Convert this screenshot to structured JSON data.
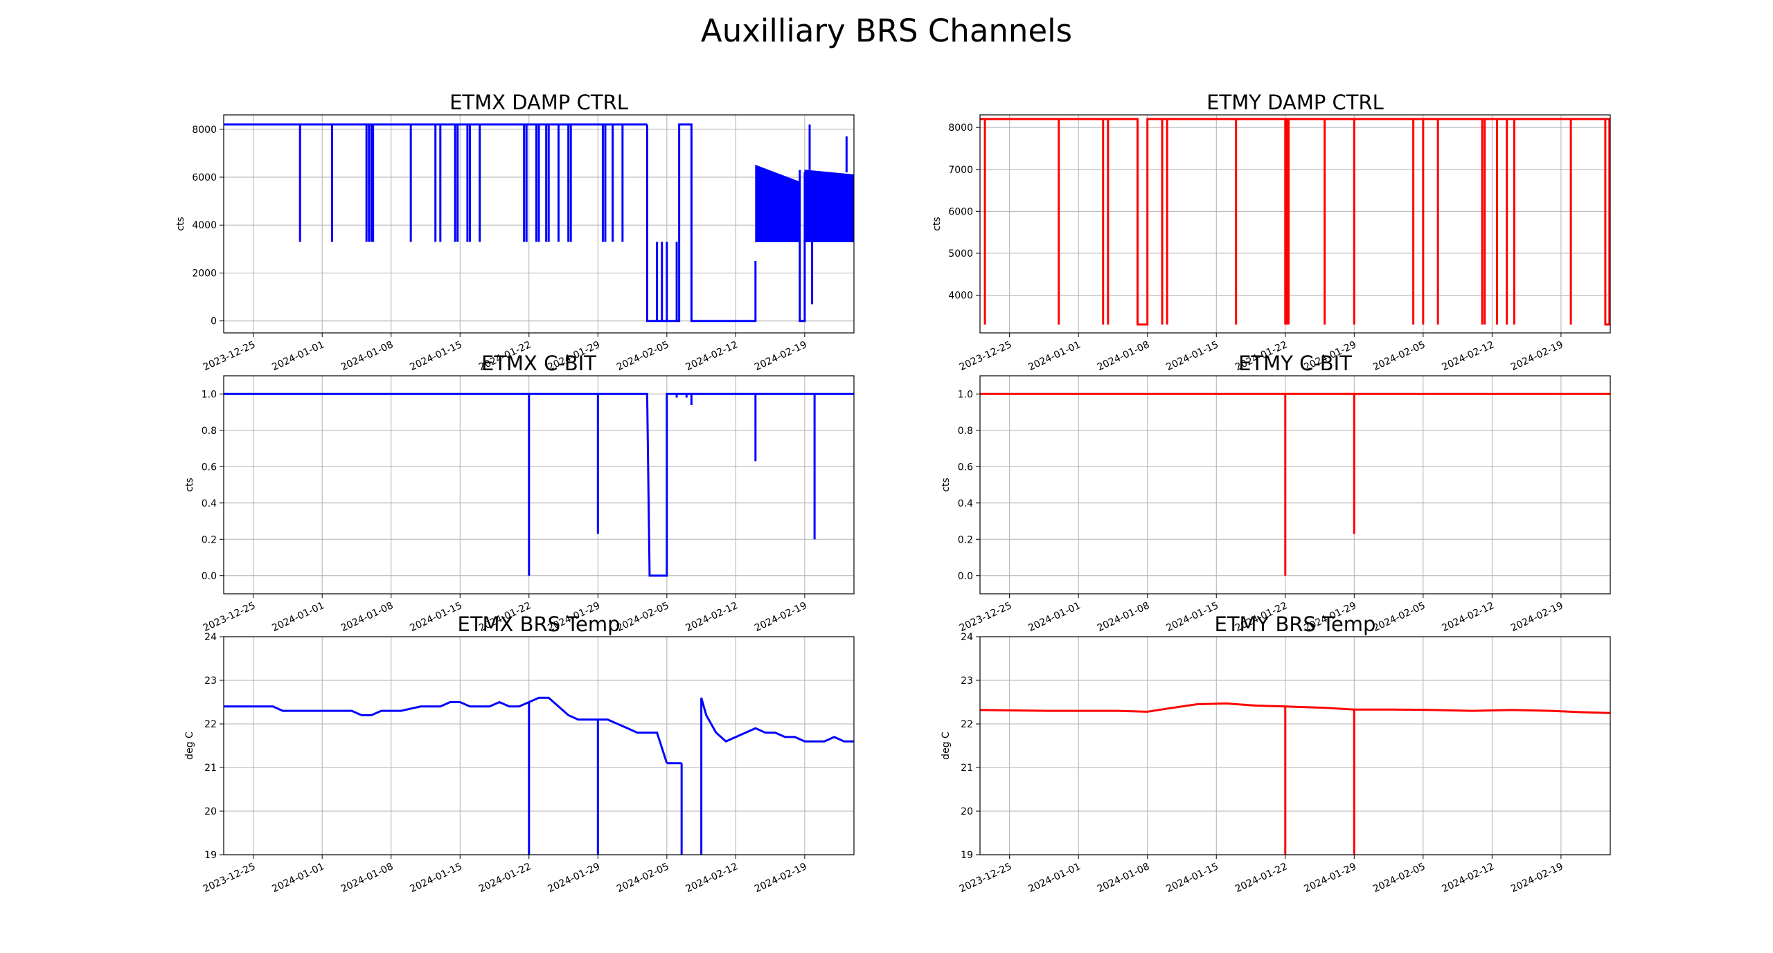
{
  "figure": {
    "suptitle": "Auxilliary BRS Channels"
  },
  "chart_data": [
    {
      "id": "etmx-damp",
      "type": "line",
      "title": "ETMX DAMP CTRL",
      "ylabel": "cts",
      "color": "#0000ff",
      "xlim": [
        "2023-12-22",
        "2024-02-24"
      ],
      "ylim": [
        -500,
        8600
      ],
      "yticks": [
        0,
        2000,
        4000,
        6000,
        8000
      ],
      "ytick_labels": [
        "0",
        "2000",
        "4000",
        "6000",
        "8000"
      ],
      "xticks": [
        "2023-12-25",
        "2024-01-01",
        "2024-01-08",
        "2024-01-15",
        "2024-01-22",
        "2024-01-29",
        "2024-02-05",
        "2024-02-12",
        "2024-02-19"
      ],
      "grid": true,
      "segments": [
        {
          "x": [
            "2023-12-22",
            "2024-02-03T00:00"
          ],
          "y": [
            8200,
            8200
          ]
        },
        {
          "x": [
            "2024-02-03T00:00",
            "2024-02-03T00:00",
            "2024-02-06T06:00",
            "2024-02-06T06:00",
            "2024-02-07T12:00",
            "2024-02-07T12:00",
            "2024-02-07T20:00",
            "2024-02-07T20:00",
            "2024-02-14T00:00",
            "2024-02-14T00:00"
          ],
          "y": [
            8200,
            0,
            0,
            8200,
            8200,
            0,
            0,
            0,
            0,
            2500
          ]
        },
        {
          "x": [
            "2024-02-18T12:00",
            "2024-02-18T12:00",
            "2024-02-19T00:00",
            "2024-02-19T00:00"
          ],
          "y": [
            6300,
            0,
            0,
            6200
          ]
        }
      ],
      "spikes": [
        {
          "x": [
            "2023-12-29T18:00"
          ],
          "y_from": 8200,
          "y_to": 3300
        },
        {
          "x": [
            "2024-01-02T00:00"
          ],
          "y_from": 8200,
          "y_to": 3300
        },
        {
          "x": [
            "2024-01-05T12:00",
            "2024-01-05T18:00",
            "2024-01-06T00:00",
            "2024-01-06T04:00"
          ],
          "y_from": 8200,
          "y_to": 3300
        },
        {
          "x": [
            "2024-01-10T00:00"
          ],
          "y_from": 8200,
          "y_to": 3300
        },
        {
          "x": [
            "2024-01-12T12:00",
            "2024-01-13T00:00",
            "2024-01-14T12:00",
            "2024-01-14T18:00",
            "2024-01-15T18:00",
            "2024-01-16T00:00",
            "2024-01-17T00:00"
          ],
          "y_from": 8200,
          "y_to": 3300
        },
        {
          "x": [
            "2024-01-21T12:00",
            "2024-01-21T18:00",
            "2024-01-22T18:00",
            "2024-01-23T00:00",
            "2024-01-23T18:00",
            "2024-01-24T00:00",
            "2024-01-25T00:00",
            "2024-01-26T00:00",
            "2024-01-26T06:00"
          ],
          "y_from": 8200,
          "y_to": 3300
        },
        {
          "x": [
            "2024-01-29T12:00",
            "2024-01-29T18:00",
            "2024-01-30T12:00",
            "2024-01-31T12:00"
          ],
          "y_from": 8200,
          "y_to": 3300
        },
        {
          "x": [
            "2024-02-04T00:00",
            "2024-02-04T12:00",
            "2024-02-05T00:00",
            "2024-02-06T00:00"
          ],
          "y_from": 0,
          "y_to": 3300
        },
        {
          "x": [
            "2024-02-19T18:00"
          ],
          "y_from": 6200,
          "y_to": 700
        },
        {
          "x": [
            "2024-02-19T12:00"
          ],
          "y_from": 6300,
          "y_to": 8200
        },
        {
          "x": [
            "2024-02-23T06:00"
          ],
          "y_from": 6200,
          "y_to": 7700
        }
      ],
      "bands": [
        {
          "x": [
            "2024-02-14T00:00",
            "2024-02-18T12:00"
          ],
          "y_low": 3300,
          "y_high_start": 6500,
          "y_high_end": 5800
        },
        {
          "x": [
            "2024-02-19T00:00",
            "2024-02-24"
          ],
          "y_low": 3300,
          "y_high_start": 6300,
          "y_high_end": 6100
        }
      ]
    },
    {
      "id": "etmy-damp",
      "type": "line",
      "title": "ETMY DAMP CTRL",
      "ylabel": "cts",
      "color": "#ff0000",
      "xlim": [
        "2023-12-22",
        "2024-02-24"
      ],
      "ylim": [
        3100,
        8300
      ],
      "yticks": [
        4000,
        5000,
        6000,
        7000,
        8000
      ],
      "ytick_labels": [
        "4000",
        "5000",
        "6000",
        "7000",
        "8000"
      ],
      "xticks": [
        "2023-12-25",
        "2024-01-01",
        "2024-01-08",
        "2024-01-15",
        "2024-01-22",
        "2024-01-29",
        "2024-02-05",
        "2024-02-12",
        "2024-02-19"
      ],
      "grid": true,
      "segments": [
        {
          "x": [
            "2023-12-22",
            "2024-01-07T00:00",
            "2024-01-07T00:00",
            "2024-01-08T00:00",
            "2024-01-08T00:00",
            "2024-02-24"
          ],
          "y": [
            8200,
            8200,
            3300,
            3300,
            8200,
            8200
          ]
        },
        {
          "x": [
            "2024-02-23T12:00",
            "2024-02-23T12:00",
            "2024-02-23T22:00",
            "2024-02-23T22:00"
          ],
          "y": [
            8200,
            3300,
            3300,
            8200
          ]
        }
      ],
      "spikes": [
        {
          "x": [
            "2023-12-22T12:00",
            "2023-12-30T00:00",
            "2024-01-03T12:00",
            "2024-01-04T00:00",
            "2024-01-09T12:00",
            "2024-01-10T00:00",
            "2024-01-17T00:00",
            "2024-01-22T00:00",
            "2024-01-22T04:00",
            "2024-01-22T08:00",
            "2024-01-26T00:00",
            "2024-01-29T00:00",
            "2024-02-04T00:00",
            "2024-02-05T00:00",
            "2024-02-06T12:00",
            "2024-02-11T00:00",
            "2024-02-11T06:00",
            "2024-02-12T12:00",
            "2024-02-13T12:00",
            "2024-02-14T06:00",
            "2024-02-20T00:00"
          ],
          "y_from": 8200,
          "y_to": 3300
        }
      ],
      "bands": []
    },
    {
      "id": "etmx-cbit",
      "type": "line",
      "title": "ETMX C-BIT",
      "ylabel": "cts",
      "color": "#0000ff",
      "xlim": [
        "2023-12-22",
        "2024-02-24"
      ],
      "ylim": [
        -0.1,
        1.1
      ],
      "yticks": [
        0.0,
        0.2,
        0.4,
        0.6,
        0.8,
        1.0
      ],
      "ytick_labels": [
        "0.0",
        "0.2",
        "0.4",
        "0.6",
        "0.8",
        "1.0"
      ],
      "xticks": [
        "2023-12-25",
        "2024-01-01",
        "2024-01-08",
        "2024-01-15",
        "2024-01-22",
        "2024-01-29",
        "2024-02-05",
        "2024-02-12",
        "2024-02-19"
      ],
      "grid": true,
      "segments": [
        {
          "x": [
            "2023-12-22",
            "2024-02-03T00:00",
            "2024-02-03T06:00",
            "2024-02-05T00:00",
            "2024-02-05T00:00",
            "2024-02-24"
          ],
          "y": [
            1,
            1,
            0,
            0,
            1,
            1
          ]
        }
      ],
      "spikes": [
        {
          "x": [
            "2024-01-22T00:00"
          ],
          "y_from": 1,
          "y_to": 0
        },
        {
          "x": [
            "2024-01-29T00:00"
          ],
          "y_from": 1,
          "y_to": 0.23
        },
        {
          "x": [
            "2024-02-06T00:00",
            "2024-02-07T00:00"
          ],
          "y_from": 1,
          "y_to": 0.98
        },
        {
          "x": [
            "2024-02-07T12:00"
          ],
          "y_from": 1,
          "y_to": 0.94
        },
        {
          "x": [
            "2024-02-14T00:00"
          ],
          "y_from": 1,
          "y_to": 0.63
        },
        {
          "x": [
            "2024-02-20T00:00"
          ],
          "y_from": 1,
          "y_to": 0.2
        }
      ],
      "bands": []
    },
    {
      "id": "etmy-cbit",
      "type": "line",
      "title": "ETMY C-BIT",
      "ylabel": "cts",
      "color": "#ff0000",
      "xlim": [
        "2023-12-22",
        "2024-02-24"
      ],
      "ylim": [
        -0.1,
        1.1
      ],
      "yticks": [
        0.0,
        0.2,
        0.4,
        0.6,
        0.8,
        1.0
      ],
      "ytick_labels": [
        "0.0",
        "0.2",
        "0.4",
        "0.6",
        "0.8",
        "1.0"
      ],
      "xticks": [
        "2023-12-25",
        "2024-01-01",
        "2024-01-08",
        "2024-01-15",
        "2024-01-22",
        "2024-01-29",
        "2024-02-05",
        "2024-02-12",
        "2024-02-19"
      ],
      "grid": true,
      "segments": [
        {
          "x": [
            "2023-12-22",
            "2024-02-24"
          ],
          "y": [
            1,
            1
          ]
        }
      ],
      "spikes": [
        {
          "x": [
            "2024-01-22T00:00"
          ],
          "y_from": 1,
          "y_to": 0
        },
        {
          "x": [
            "2024-01-29T00:00"
          ],
          "y_from": 1,
          "y_to": 0.23
        }
      ],
      "bands": []
    },
    {
      "id": "etmx-temp",
      "type": "line",
      "title": "ETMX BRS Temp",
      "ylabel": "deg C",
      "color": "#0000ff",
      "xlim": [
        "2023-12-22",
        "2024-02-24"
      ],
      "ylim": [
        19,
        24
      ],
      "yticks": [
        19,
        20,
        21,
        22,
        23,
        24
      ],
      "ytick_labels": [
        "19",
        "20",
        "21",
        "22",
        "23",
        "24"
      ],
      "xticks": [
        "2023-12-25",
        "2024-01-01",
        "2024-01-08",
        "2024-01-15",
        "2024-01-22",
        "2024-01-29",
        "2024-02-05",
        "2024-02-12",
        "2024-02-19"
      ],
      "grid": true,
      "segments": [
        {
          "x": [
            "2023-12-22",
            "2023-12-25",
            "2023-12-26",
            "2023-12-27",
            "2023-12-28",
            "2023-12-29",
            "2023-12-30",
            "2024-01-01",
            "2024-01-02",
            "2024-01-04",
            "2024-01-05",
            "2024-01-06",
            "2024-01-07",
            "2024-01-08",
            "2024-01-09",
            "2024-01-11",
            "2024-01-12",
            "2024-01-13",
            "2024-01-14",
            "2024-01-15",
            "2024-01-16",
            "2024-01-18",
            "2024-01-19",
            "2024-01-20",
            "2024-01-21",
            "2024-01-22",
            "2024-01-23",
            "2024-01-24",
            "2024-01-25",
            "2024-01-26",
            "2024-01-27",
            "2024-01-28",
            "2024-01-29",
            "2024-01-30",
            "2024-01-31",
            "2024-02-01",
            "2024-02-02",
            "2024-02-03",
            "2024-02-04",
            "2024-02-05"
          ],
          "y": [
            22.4,
            22.4,
            22.4,
            22.4,
            22.3,
            22.3,
            22.3,
            22.3,
            22.3,
            22.3,
            22.2,
            22.2,
            22.3,
            22.3,
            22.3,
            22.4,
            22.4,
            22.4,
            22.5,
            22.5,
            22.4,
            22.4,
            22.5,
            22.4,
            22.4,
            22.5,
            22.6,
            22.6,
            22.4,
            22.2,
            22.1,
            22.1,
            22.1,
            22.1,
            22.0,
            21.9,
            21.8,
            21.8,
            21.8,
            21.1
          ]
        },
        {
          "x": [
            "2024-02-05",
            "2024-02-06T12:00"
          ],
          "y": [
            21.1,
            21.1
          ]
        },
        {
          "x": [
            "2024-02-08T12:00",
            "2024-02-09",
            "2024-02-10",
            "2024-02-11",
            "2024-02-12",
            "2024-02-13",
            "2024-02-14",
            "2024-02-15",
            "2024-02-16",
            "2024-02-17",
            "2024-02-18",
            "2024-02-19",
            "2024-02-20",
            "2024-02-21",
            "2024-02-22",
            "2024-02-23",
            "2024-02-24"
          ],
          "y": [
            22.6,
            22.2,
            21.8,
            21.6,
            21.7,
            21.8,
            21.9,
            21.8,
            21.8,
            21.7,
            21.7,
            21.6,
            21.6,
            21.6,
            21.7,
            21.6,
            21.6
          ]
        }
      ],
      "spikes": [
        {
          "x": [
            "2024-01-22T00:00"
          ],
          "y_from": 22.5,
          "y_to": 19
        },
        {
          "x": [
            "2024-01-29T00:00"
          ],
          "y_from": 22.1,
          "y_to": 19
        },
        {
          "x": [
            "2024-02-06T12:00"
          ],
          "y_from": 21.1,
          "y_to": 19
        },
        {
          "x": [
            "2024-02-08T12:00"
          ],
          "y_from": 22.6,
          "y_to": 19
        }
      ],
      "bands": []
    },
    {
      "id": "etmy-temp",
      "type": "line",
      "title": "ETMY BRS Temp",
      "ylabel": "deg C",
      "color": "#ff0000",
      "xlim": [
        "2023-12-22",
        "2024-02-24"
      ],
      "ylim": [
        19,
        24
      ],
      "yticks": [
        19,
        20,
        21,
        22,
        23,
        24
      ],
      "ytick_labels": [
        "19",
        "20",
        "21",
        "22",
        "23",
        "24"
      ],
      "xticks": [
        "2023-12-25",
        "2024-01-01",
        "2024-01-08",
        "2024-01-15",
        "2024-01-22",
        "2024-01-29",
        "2024-02-05",
        "2024-02-12",
        "2024-02-19"
      ],
      "grid": true,
      "segments": [
        {
          "x": [
            "2023-12-22",
            "2023-12-29",
            "2024-01-05",
            "2024-01-08",
            "2024-01-10",
            "2024-01-13",
            "2024-01-16",
            "2024-01-19",
            "2024-01-22",
            "2024-01-26",
            "2024-01-29",
            "2024-02-02",
            "2024-02-06",
            "2024-02-10",
            "2024-02-14",
            "2024-02-18",
            "2024-02-21",
            "2024-02-24"
          ],
          "y": [
            22.32,
            22.3,
            22.3,
            22.28,
            22.35,
            22.45,
            22.47,
            22.42,
            22.4,
            22.37,
            22.33,
            22.33,
            22.32,
            22.3,
            22.32,
            22.3,
            22.27,
            22.25
          ]
        }
      ],
      "spikes": [
        {
          "x": [
            "2024-01-22T00:00"
          ],
          "y_from": 22.4,
          "y_to": 19
        },
        {
          "x": [
            "2024-01-29T00:00"
          ],
          "y_from": 22.33,
          "y_to": 19
        }
      ],
      "bands": []
    }
  ]
}
